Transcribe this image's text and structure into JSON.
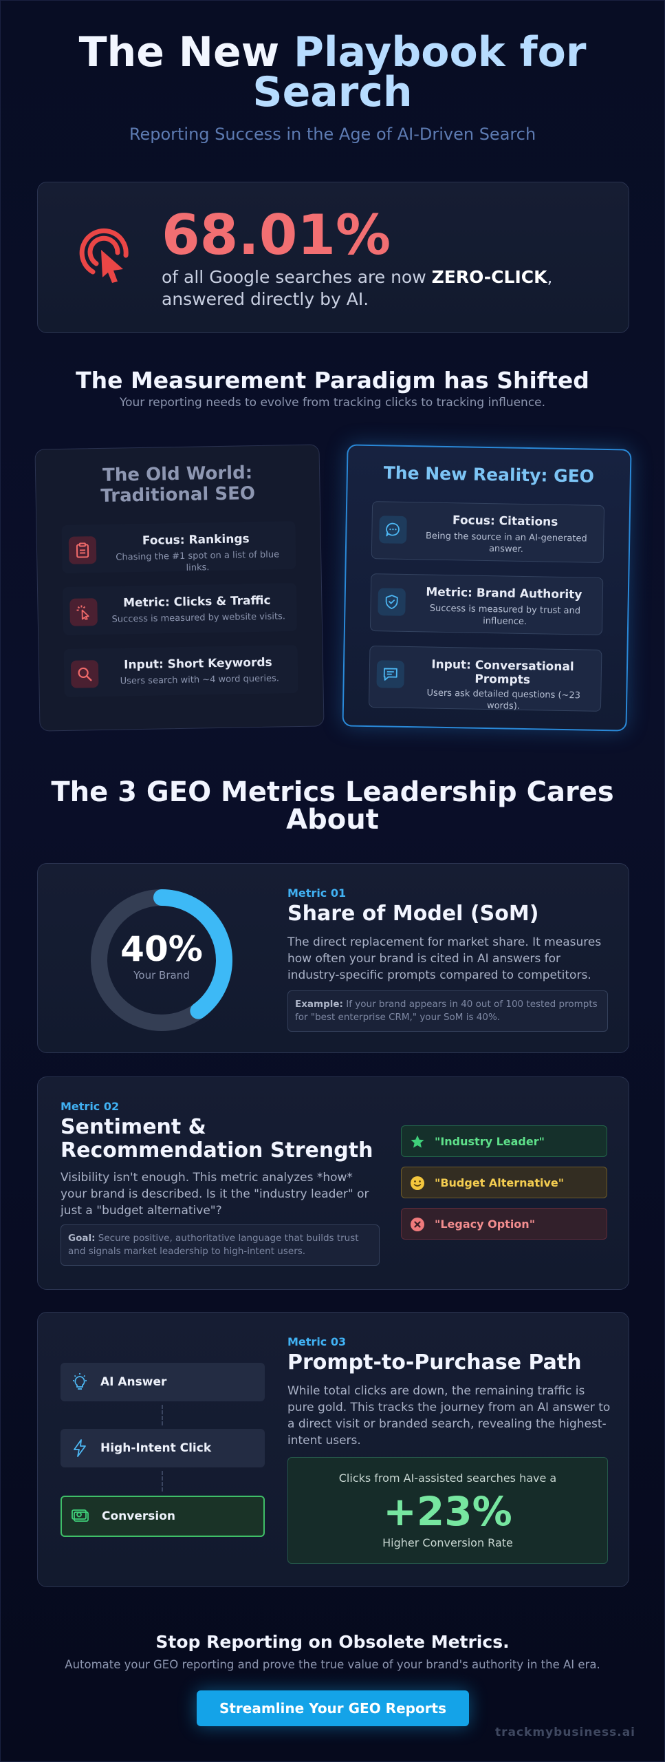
{
  "hero": {
    "title_line1_white": "The New ",
    "title_line1_blue": "Playbook for",
    "title_line2_blue": "Search",
    "subtitle": "Reporting Success in the Age of AI-Driven Search"
  },
  "stat": {
    "icon": "click-target-icon",
    "value": "68.01%",
    "text_before": "of all Google searches are now ",
    "text_bold": "ZERO-CLICK",
    "text_after": ", answered directly by AI.",
    "color": "#f26f72"
  },
  "paradigm": {
    "title": "The Measurement Paradigm has Shifted",
    "subtitle": "Your reporting needs to evolve from tracking clicks to tracking influence.",
    "old": {
      "title": "The Old World: Traditional SEO",
      "items": [
        {
          "icon": "clipboard-icon",
          "title": "Focus: Rankings",
          "desc": "Chasing the #1 spot on a list of blue links."
        },
        {
          "icon": "cursor-click-icon",
          "title": "Metric: Clicks & Traffic",
          "desc": "Success is measured by website visits."
        },
        {
          "icon": "search-icon",
          "title": "Input: Short Keywords",
          "desc": "Users search with ~4 word queries."
        }
      ]
    },
    "new": {
      "title": "The New Reality: GEO",
      "items": [
        {
          "icon": "chat-bubble-icon",
          "title": "Focus: Citations",
          "desc": "Being the source in an AI-generated answer."
        },
        {
          "icon": "shield-check-icon",
          "title": "Metric: Brand Authority",
          "desc": "Success is measured by trust and influence."
        },
        {
          "icon": "message-square-icon",
          "title": "Input: Conversational Prompts",
          "desc": "Users ask detailed questions (~23 words)."
        }
      ]
    }
  },
  "metrics": {
    "title": "The 3 GEO Metrics Leadership Cares About",
    "m1": {
      "eyebrow": "Metric 01",
      "title": "Share of Model (SoM)",
      "desc": "The direct replacement for market share. It measures how often your brand is cited in AI answers for industry-specific prompts compared to competitors.",
      "note_label": "Example:",
      "note_text": " If your brand appears in 40 out of 100 tested prompts for \"best enterprise CRM,\" your SoM is 40%.",
      "donut_value": "40%",
      "donut_label": "Your Brand",
      "donut_fraction": 0.4,
      "donut_color": "#3db9f6"
    },
    "m2": {
      "eyebrow": "Metric 02",
      "title": "Sentiment & Recommendation Strength",
      "desc": "Visibility isn't enough. This metric analyzes *how* your brand is described. Is it the \"industry leader\" or just a \"budget alternative\"?",
      "note_label": "Goal:",
      "note_text": " Secure positive, authoritative language that builds trust and signals market leadership to high-intent users.",
      "pills": [
        {
          "icon": "star-icon",
          "label": "\"Industry Leader\""
        },
        {
          "icon": "smile-icon",
          "label": "\"Budget Alternative\""
        },
        {
          "icon": "x-circle-icon",
          "label": "\"Legacy Option\""
        }
      ]
    },
    "m3": {
      "eyebrow": "Metric 03",
      "title": "Prompt-to-Purchase Path",
      "desc": "While total clicks are down, the remaining traffic is pure gold. This tracks the journey from an AI answer to a direct visit or branded search, revealing the highest-intent users.",
      "steps": [
        {
          "icon": "lightbulb-icon",
          "label": "AI Answer"
        },
        {
          "icon": "lightning-icon",
          "label": "High-Intent Click"
        },
        {
          "icon": "money-icon",
          "label": "Conversion"
        }
      ],
      "result_top": "Clicks from AI-assisted searches have a",
      "result_value": "+23%",
      "result_bottom": "Higher Conversion Rate"
    }
  },
  "footer": {
    "title": "Stop Reporting on Obsolete Metrics.",
    "subtitle": "Automate your GEO reporting and prove the true value of your brand's authority in the AI era.",
    "cta": "Streamline Your GEO Reports",
    "brand": "trackmybusiness.ai"
  }
}
